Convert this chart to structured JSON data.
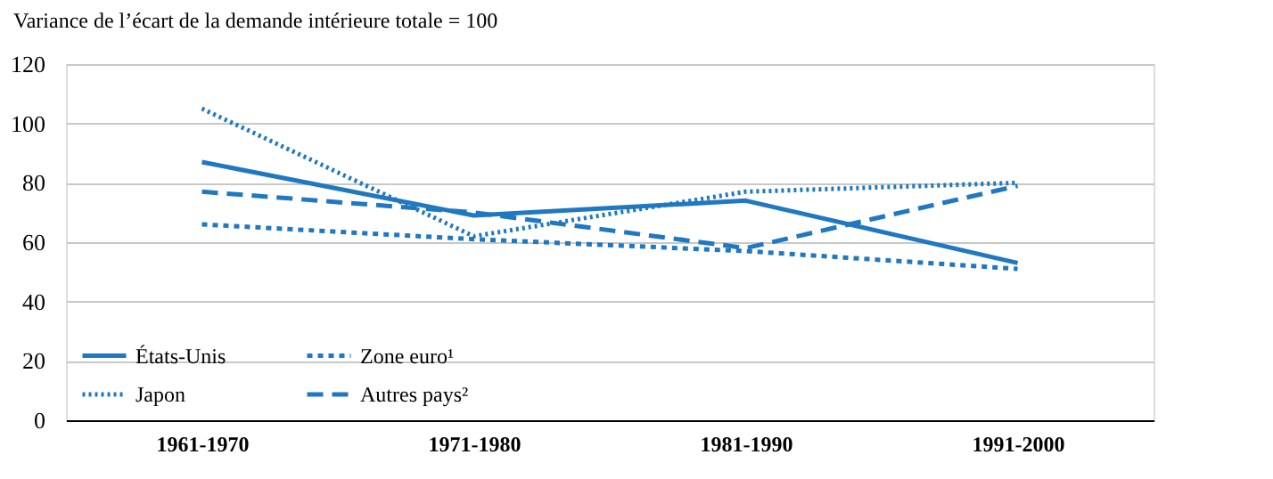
{
  "chart_data": {
    "type": "line",
    "ylabel": "Variance de l’écart de la demande intérieure totale = 100",
    "categories": [
      "1961-1970",
      "1971-1980",
      "1981-1990",
      "1991-2000"
    ],
    "ylim": [
      0,
      120
    ],
    "yticks": [
      0,
      20,
      40,
      60,
      80,
      100,
      120
    ],
    "grid": "y",
    "legend": "bottom left",
    "marker": "none",
    "series": [
      {
        "name": "États-Unis",
        "color": "#1f78c1",
        "line_style": "solid",
        "values": [
          87,
          69,
          74,
          53
        ]
      },
      {
        "name": "Japon",
        "color": "#1f78c1",
        "line_style": "dotted",
        "values": [
          105,
          62,
          77,
          80
        ]
      },
      {
        "name": "Zone euro¹",
        "color": "#1f78c1",
        "line_style": "dashed",
        "values": [
          66,
          61,
          57,
          51
        ]
      },
      {
        "name": "Autres pays²",
        "color": "#1f78c1",
        "line_style": "dashed",
        "values": [
          77,
          70,
          58,
          79
        ]
      }
    ]
  }
}
